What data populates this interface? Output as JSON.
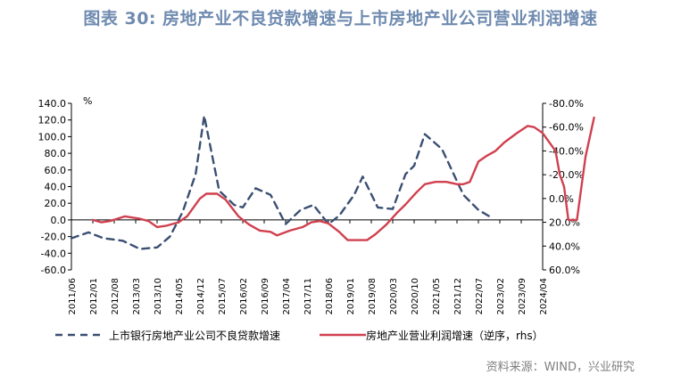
{
  "title": "图表 30: 房地产业不良贷款增速与上市房地产业公司营业利润增速",
  "source": "资料来源：WIND，兴业研究",
  "colors": {
    "title": "#6f8bb0",
    "series1": "#3a4f72",
    "series2": "#d0404f"
  },
  "chart_data": {
    "type": "line",
    "x_ticks": [
      "2011/06",
      "2012/01",
      "2012/08",
      "2013/03",
      "2013/10",
      "2014/05",
      "2014/12",
      "2015/07",
      "2016/02",
      "2016/09",
      "2017/04",
      "2017/11",
      "2018/06",
      "2019/01",
      "2019/08",
      "2020/03",
      "2020/10",
      "2021/05",
      "2021/12",
      "2022/07",
      "2023/02",
      "2023/09",
      "2024/04"
    ],
    "y_left": {
      "unit": "%",
      "ticks": [
        "140.0",
        "120.0",
        "100.0",
        "80.0",
        "60.0",
        "40.0",
        "20.0",
        "0.0",
        "-20.0",
        "-40.0",
        "-60.0"
      ],
      "range": [
        -60,
        140
      ]
    },
    "y_right": {
      "ticks": [
        "-80.0%",
        "-60.0%",
        "-40.0%",
        "-20.0%",
        "0.0%",
        "20.0%",
        "40.0%",
        "60.0%"
      ],
      "range": [
        60,
        -80
      ],
      "inverted": true
    },
    "series": [
      {
        "name": "上市银行房地产业公司不良贷款增速",
        "axis": "left",
        "style": "dashed",
        "points": [
          [
            0,
            -22
          ],
          [
            0.8,
            -15
          ],
          [
            1.5,
            -22
          ],
          [
            2.4,
            -25
          ],
          [
            3.2,
            -35
          ],
          [
            4.0,
            -33
          ],
          [
            4.6,
            -20
          ],
          [
            5.2,
            10
          ],
          [
            5.8,
            55
          ],
          [
            6.2,
            125
          ],
          [
            6.9,
            35
          ],
          [
            7.6,
            18
          ],
          [
            8.0,
            15
          ],
          [
            8.6,
            38
          ],
          [
            9.3,
            30
          ],
          [
            10.0,
            -5
          ],
          [
            10.7,
            12
          ],
          [
            11.3,
            18
          ],
          [
            12.0,
            -5
          ],
          [
            12.5,
            5
          ],
          [
            13.2,
            30
          ],
          [
            13.6,
            52
          ],
          [
            14.3,
            15
          ],
          [
            15.0,
            13
          ],
          [
            15.6,
            55
          ],
          [
            16.0,
            65
          ],
          [
            16.5,
            103
          ],
          [
            17.3,
            85
          ],
          [
            17.9,
            52
          ],
          [
            18.3,
            30
          ],
          [
            19.0,
            12
          ],
          [
            19.6,
            3
          ]
        ]
      },
      {
        "name": "房地产业营业利润增速（逆序，rhs）",
        "axis": "right",
        "style": "solid",
        "points": [
          [
            1.0,
            18
          ],
          [
            1.4,
            20
          ],
          [
            1.8,
            19
          ],
          [
            2.5,
            15
          ],
          [
            3.2,
            17
          ],
          [
            3.6,
            19
          ],
          [
            4.0,
            24
          ],
          [
            4.4,
            23
          ],
          [
            5.0,
            20
          ],
          [
            5.4,
            15
          ],
          [
            6.0,
            0
          ],
          [
            6.3,
            -4
          ],
          [
            6.8,
            -4
          ],
          [
            7.2,
            1
          ],
          [
            7.8,
            15
          ],
          [
            8.3,
            22
          ],
          [
            8.8,
            27
          ],
          [
            9.3,
            28
          ],
          [
            9.6,
            31
          ],
          [
            10.2,
            27
          ],
          [
            10.8,
            24
          ],
          [
            11.2,
            20
          ],
          [
            11.6,
            19
          ],
          [
            12.0,
            21
          ],
          [
            12.5,
            28
          ],
          [
            12.9,
            35
          ],
          [
            13.4,
            35
          ],
          [
            13.8,
            35
          ],
          [
            14.2,
            30
          ],
          [
            14.7,
            22
          ],
          [
            15.2,
            12
          ],
          [
            15.6,
            5
          ],
          [
            16.1,
            -5
          ],
          [
            16.5,
            -12
          ],
          [
            17.0,
            -14
          ],
          [
            17.5,
            -14
          ],
          [
            18.0,
            -12
          ],
          [
            18.3,
            -12
          ],
          [
            18.6,
            -14
          ],
          [
            19.0,
            -31
          ],
          [
            19.4,
            -36
          ],
          [
            19.8,
            -40
          ],
          [
            20.2,
            -47
          ],
          [
            20.8,
            -55
          ],
          [
            21.3,
            -61
          ],
          [
            21.6,
            -60
          ],
          [
            22.0,
            -55
          ],
          [
            22.6,
            -40
          ],
          [
            22.8,
            -20
          ],
          [
            23.0,
            -10
          ],
          [
            23.2,
            18
          ],
          [
            23.6,
            18
          ],
          [
            24.0,
            -35
          ],
          [
            24.4,
            -68
          ]
        ]
      }
    ],
    "legend": [
      {
        "label": "上市银行房地产业公司不良贷款增速",
        "style": "dashed"
      },
      {
        "label": "房地产业营业利润增速（逆序，rhs）",
        "style": "solid"
      }
    ]
  }
}
